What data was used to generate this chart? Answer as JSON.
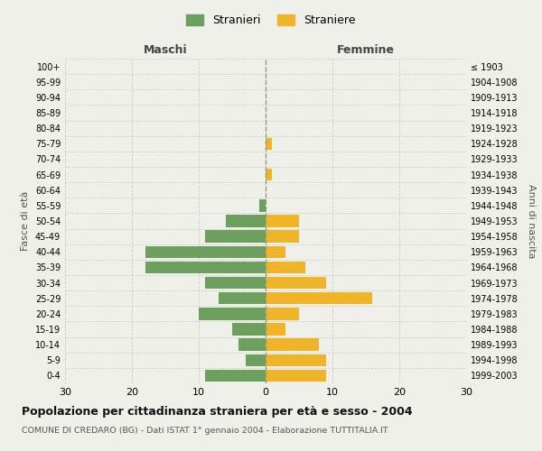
{
  "age_groups": [
    "100+",
    "95-99",
    "90-94",
    "85-89",
    "80-84",
    "75-79",
    "70-74",
    "65-69",
    "60-64",
    "55-59",
    "50-54",
    "45-49",
    "40-44",
    "35-39",
    "30-34",
    "25-29",
    "20-24",
    "15-19",
    "10-14",
    "5-9",
    "0-4"
  ],
  "birth_years": [
    "≤ 1903",
    "1904-1908",
    "1909-1913",
    "1914-1918",
    "1919-1923",
    "1924-1928",
    "1929-1933",
    "1934-1938",
    "1939-1943",
    "1944-1948",
    "1949-1953",
    "1954-1958",
    "1959-1963",
    "1964-1968",
    "1969-1973",
    "1974-1978",
    "1979-1983",
    "1984-1988",
    "1989-1993",
    "1994-1998",
    "1999-2003"
  ],
  "males": [
    0,
    0,
    0,
    0,
    0,
    0,
    0,
    0,
    0,
    1,
    6,
    9,
    18,
    18,
    9,
    7,
    10,
    5,
    4,
    3,
    9
  ],
  "females": [
    0,
    0,
    0,
    0,
    0,
    1,
    0,
    1,
    0,
    0,
    5,
    5,
    3,
    6,
    9,
    16,
    5,
    3,
    8,
    9,
    9
  ],
  "male_color": "#6d9f5e",
  "female_color": "#f0b429",
  "background_color": "#f0f0eb",
  "grid_color": "#cccccc",
  "title": "Popolazione per cittadinanza straniera per età e sesso - 2004",
  "subtitle": "COMUNE DI CREDARO (BG) - Dati ISTAT 1° gennaio 2004 - Elaborazione TUTTITALIA.IT",
  "xlabel_left": "Maschi",
  "xlabel_right": "Femmine",
  "ylabel_left": "Fasce di età",
  "ylabel_right": "Anni di nascita",
  "legend_male": "Stranieri",
  "legend_female": "Straniere",
  "xlim": 30,
  "center_line_color": "#999977"
}
